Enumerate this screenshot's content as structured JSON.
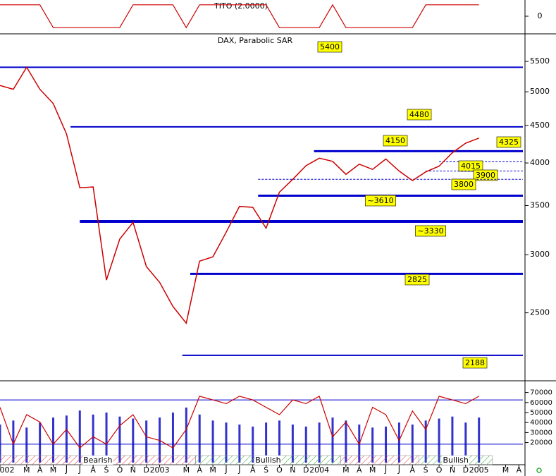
{
  "chart_data": [
    {
      "type": "line",
      "title": "TITO (2.0000)",
      "x": [
        0,
        1,
        2,
        3,
        4,
        5,
        6,
        7,
        8,
        9,
        10,
        11,
        12,
        13,
        14,
        15,
        16,
        17,
        18,
        19,
        20,
        21,
        22,
        23,
        24,
        25,
        26,
        27,
        28,
        29,
        30,
        31,
        32,
        33,
        34,
        35,
        36
      ],
      "values": [
        1,
        1,
        1,
        1,
        -1,
        -1,
        -1,
        -1,
        -1,
        -1,
        1,
        1,
        1,
        1,
        -1,
        1,
        1,
        1,
        1,
        1,
        1,
        -1,
        -1,
        -1,
        -1,
        1,
        -1,
        -1,
        -1,
        -1,
        -1,
        -1,
        1,
        1,
        1,
        1,
        1
      ],
      "color": "#cc0000",
      "xlim": [
        0,
        39.3
      ],
      "ylim": [
        -1.3,
        1.3
      ],
      "yticks": [
        0
      ]
    },
    {
      "type": "line",
      "title": "DAX, Parabolic SAR",
      "x": [
        0,
        1,
        2,
        3,
        4,
        5,
        6,
        7,
        8,
        9,
        10,
        11,
        12,
        13,
        14,
        15,
        16,
        17,
        18,
        19,
        20,
        21,
        22,
        23,
        24,
        25,
        26,
        27,
        28,
        29,
        30,
        31,
        32,
        33,
        34,
        35,
        36
      ],
      "values": [
        5100,
        5040,
        5400,
        5040,
        4820,
        4380,
        3700,
        3710,
        2770,
        3150,
        3320,
        2890,
        2750,
        2550,
        2420,
        2940,
        2980,
        3220,
        3490,
        3480,
        3260,
        3650,
        3800,
        3965,
        4060,
        4020,
        3860,
        3985,
        3920,
        4050,
        3900,
        3785,
        3890,
        3960,
        4130,
        4256,
        4325
      ],
      "color": "#cc0000",
      "log_scale": true,
      "xlim": [
        0,
        39.3
      ],
      "ylim": [
        2020,
        5970
      ],
      "yticks": [
        5500,
        5000,
        4500,
        4000,
        3500,
        3000,
        2500
      ],
      "levels": [
        {
          "value": 5400,
          "from": 0
        },
        {
          "value": 4480,
          "from": 5.3
        },
        {
          "value": 4150,
          "from": 23.6
        },
        {
          "value": 4325
        },
        {
          "value": 4015,
          "from": 33
        },
        {
          "value": 3900,
          "from": 32
        },
        {
          "value": 3800,
          "from": 19.4
        },
        {
          "value": 3610,
          "label": "~3610",
          "from": 19.4
        },
        {
          "value": 3330,
          "label": "~3330",
          "from": 6
        },
        {
          "value": 2825,
          "from": 14.3
        },
        {
          "value": 2188,
          "from": 13.7
        }
      ],
      "level_color": "#0000cc"
    },
    {
      "type": "bar",
      "x": [
        0,
        1,
        2,
        3,
        4,
        5,
        6,
        7,
        8,
        9,
        10,
        11,
        12,
        13,
        14,
        15,
        16,
        17,
        18,
        19,
        20,
        21,
        22,
        23,
        24,
        25,
        26,
        27,
        28,
        29,
        30,
        31,
        32,
        33,
        34,
        35,
        36
      ],
      "values": [
        38000,
        42000,
        35000,
        40000,
        45000,
        47000,
        52000,
        48000,
        50000,
        46000,
        44000,
        42000,
        45000,
        50000,
        55000,
        48000,
        42000,
        40000,
        38000,
        36000,
        40000,
        42000,
        38000,
        36000,
        40000,
        45000,
        42000,
        38000,
        35000,
        36000,
        40000,
        38000,
        42000,
        44000,
        46000,
        40000,
        45000
      ],
      "color": "#3333cc",
      "xlim": [
        0,
        39.3
      ],
      "ylim": [
        0,
        81000
      ],
      "yticks": [
        70000,
        60000,
        50000,
        40000,
        30000,
        20000
      ],
      "line": {
        "values": [
          70,
          20,
          60,
          50,
          20,
          40,
          15,
          30,
          20,
          45,
          60,
          30,
          25,
          15,
          40,
          85,
          80,
          75,
          85,
          80,
          70,
          60,
          80,
          75,
          85,
          30,
          50,
          20,
          70,
          60,
          25,
          65,
          40,
          85,
          80,
          75,
          85
        ],
        "color": "#cc0000",
        "axis": "y2"
      },
      "y2lim": [
        -5,
        105
      ],
      "reference_lines": [
        80,
        20
      ],
      "bands": [
        {
          "label": "Bearish",
          "from": 0,
          "to": 14.7,
          "color": "#dd3333"
        },
        {
          "label": "Bullish",
          "from": 14.7,
          "to": 25.6,
          "color": "#33aa33"
        },
        {
          "from": 25.6,
          "to": 31.5,
          "color": "#dd3333"
        },
        {
          "label": "Bullish",
          "from": 31.5,
          "to": 37,
          "color": "#33aa33"
        }
      ],
      "xticks": [
        {
          "value": 0,
          "label": "002"
        },
        {
          "value": 2,
          "label": "M"
        },
        {
          "value": 3,
          "label": "A"
        },
        {
          "value": 4,
          "label": "M"
        },
        {
          "value": 5,
          "label": "J"
        },
        {
          "value": 6,
          "label": "J"
        },
        {
          "value": 7,
          "label": "A"
        },
        {
          "value": 8,
          "label": "S"
        },
        {
          "value": 9,
          "label": "O"
        },
        {
          "value": 10,
          "label": "N"
        },
        {
          "value": 11,
          "label": "D"
        },
        {
          "value": 12,
          "label": "2003"
        },
        {
          "value": 14,
          "label": "M"
        },
        {
          "value": 15,
          "label": "A"
        },
        {
          "value": 16,
          "label": "M"
        },
        {
          "value": 17,
          "label": "J"
        },
        {
          "value": 18,
          "label": "J"
        },
        {
          "value": 19,
          "label": "A"
        },
        {
          "value": 20,
          "label": "S"
        },
        {
          "value": 21,
          "label": "O"
        },
        {
          "value": 22,
          "label": "N"
        },
        {
          "value": 23,
          "label": "D"
        },
        {
          "value": 24,
          "label": "2004"
        },
        {
          "value": 26,
          "label": "M"
        },
        {
          "value": 27,
          "label": "A"
        },
        {
          "value": 28,
          "label": "M"
        },
        {
          "value": 29,
          "label": "J"
        },
        {
          "value": 30,
          "label": "J"
        },
        {
          "value": 31,
          "label": "A"
        },
        {
          "value": 32,
          "label": "S"
        },
        {
          "value": 33,
          "label": "O"
        },
        {
          "value": 34,
          "label": "N"
        },
        {
          "value": 35,
          "label": "D"
        },
        {
          "value": 36,
          "label": "2005"
        },
        {
          "value": 38,
          "label": "M"
        },
        {
          "value": 39,
          "label": "A"
        }
      ]
    }
  ]
}
